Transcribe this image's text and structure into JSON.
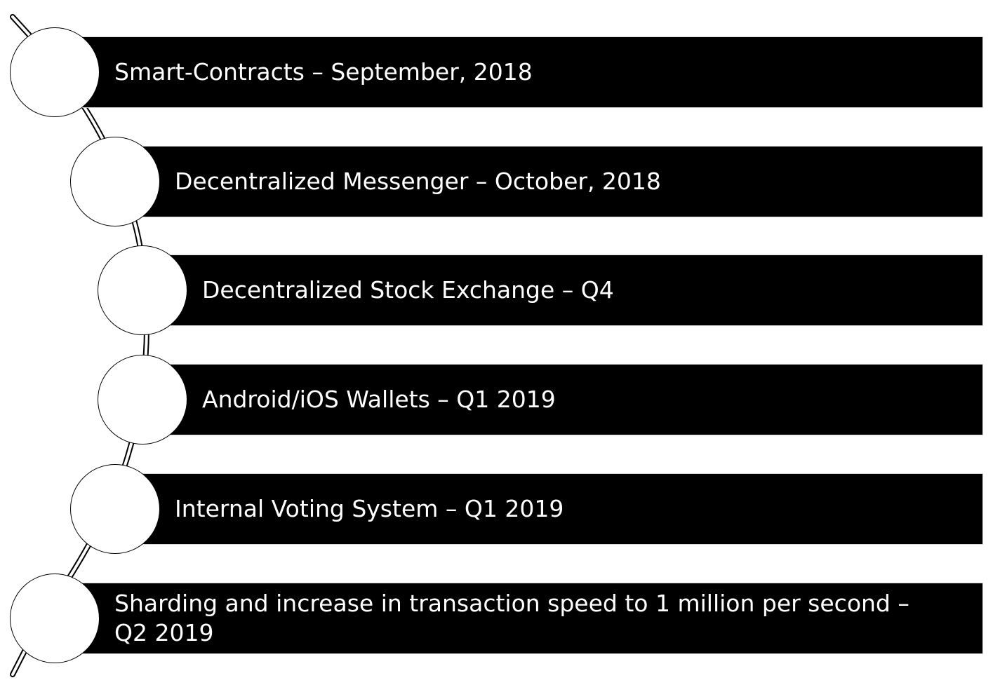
{
  "milestones": [
    {
      "label": "Smart-Contracts – September, 2018"
    },
    {
      "label": "Decentralized Messenger – October, 2018"
    },
    {
      "label": "Decentralized Stock Exchange – Q4"
    },
    {
      "label": "Android/iOS Wallets – Q1 2019"
    },
    {
      "label": "Internal Voting System – Q1 2019"
    },
    {
      "label": "Sharding and increase in transaction speed to 1 million per second – Q2 2019"
    }
  ],
  "colors": {
    "bar_fill": "#000000",
    "bar_text": "#ffffff",
    "node_fill": "#ffffff",
    "node_stroke": "#000000",
    "connector": "#000000"
  }
}
